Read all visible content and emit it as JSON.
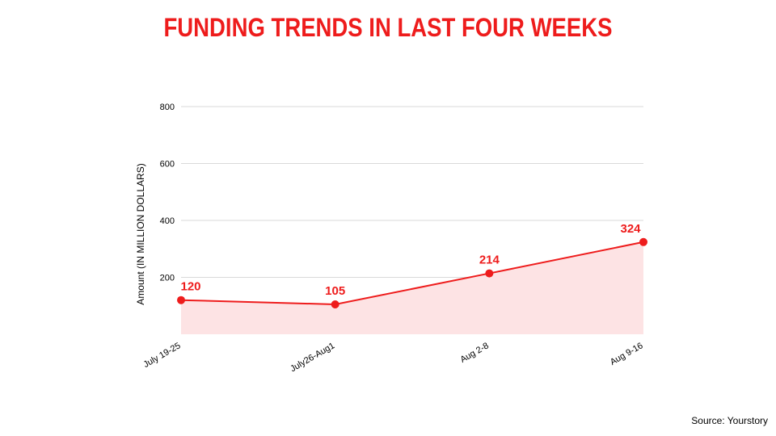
{
  "title": "FUNDING TRENDS IN LAST FOUR WEEKS",
  "source": "Source: Yourstory",
  "colors": {
    "accent": "#ee1c1c",
    "area_fill": "#fde3e4",
    "grid": "#d9d9d9"
  },
  "chart_data": {
    "type": "area",
    "title": "FUNDING TRENDS IN LAST FOUR WEEKS",
    "xlabel": "",
    "ylabel": "Amount (IN MILLION DOLLARS)",
    "categories": [
      "July 19-25",
      "July26-Aug1",
      "Aug 2-8",
      "Aug 9-16"
    ],
    "series": [
      {
        "values": [
          120,
          105,
          214,
          324
        ]
      }
    ],
    "data_labels": [
      "120",
      "105",
      "214",
      "324"
    ],
    "yticks": [
      "200",
      "400",
      "600",
      "800"
    ],
    "ylim": [
      0,
      800
    ],
    "grid": true,
    "legend": "none"
  }
}
